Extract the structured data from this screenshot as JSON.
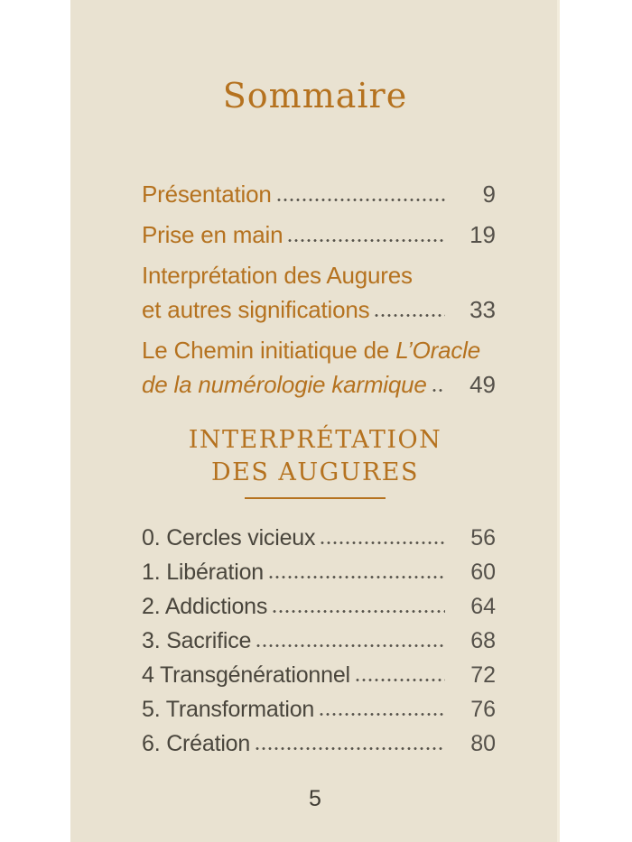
{
  "page": {
    "title": "Sommaire",
    "number": "5"
  },
  "colors": {
    "accent_orange": "#b5721f",
    "text_dark": "#49453c",
    "numbers_gray": "#55514a",
    "page_background": "#e9e2d1",
    "margin_background": "#ffffff"
  },
  "toc": {
    "entries": [
      {
        "line1": "Présentation",
        "page": "9"
      },
      {
        "line1": "Prise en main",
        "page": "19"
      },
      {
        "line1": "Interprétation des Augures",
        "line2": "et autres significations",
        "page": "33"
      },
      {
        "line1_normal": "Le Chemin initiatique de ",
        "line1_italic": "L’Oracle",
        "line2_italic": "de la numérologie karmique",
        "page": "49"
      }
    ]
  },
  "section": {
    "heading_line1": "INTERPRÉTATION",
    "heading_line2": "DES AUGURES"
  },
  "list": {
    "entries": [
      {
        "label": "0. Cercles vicieux",
        "page": "56"
      },
      {
        "label": "1. Libération",
        "page": "60"
      },
      {
        "label": "2. Addictions",
        "page": "64"
      },
      {
        "label": "3. Sacrifice",
        "page": "68"
      },
      {
        "label": "4 Transgénérationnel",
        "page": "72"
      },
      {
        "label": "5. Transformation",
        "page": "76"
      },
      {
        "label": "6. Création",
        "page": "80"
      }
    ]
  }
}
